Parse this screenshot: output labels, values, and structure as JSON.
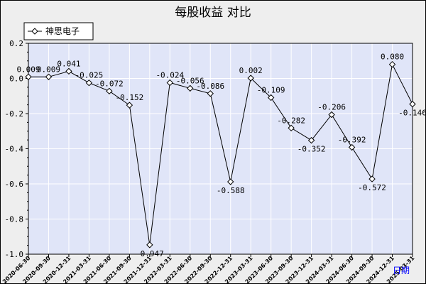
{
  "colors": {
    "background": "#eeeeee",
    "plot_background": "#e0e5f8",
    "grid": "#ffffff",
    "line": "#000000",
    "marker_fill": "#ffffff",
    "xaxis_label_color": "#0000ff"
  },
  "chart_data": {
    "type": "line",
    "title": "每股收益  对比",
    "xlabel": "日期",
    "ylabel": "",
    "ylim": [
      -1.0,
      0.2
    ],
    "yticks": [
      0.2,
      0.0,
      -0.2,
      -0.4,
      -0.6,
      -0.8,
      -1.0
    ],
    "ytick_labels": [
      "0.2",
      "0.0",
      "-0.2",
      "-0.4",
      "-0.6",
      "-0.8",
      "-1.0"
    ],
    "grid": true,
    "legend_position": "top-left",
    "categories": [
      "2020-06-30",
      "2020-09-30",
      "2020-12-31",
      "2021-03-31",
      "2021-06-30",
      "2021-09-30",
      "2021-12-31",
      "2022-03-31",
      "2022-06-30",
      "2022-09-30",
      "2022-12-31",
      "2023-03-31",
      "2023-06-30",
      "2023-09-30",
      "2023-12-31",
      "2024-03-31",
      "2024-06-30",
      "2024-09-30",
      "2024-12-31",
      "2025-03-31"
    ],
    "series": [
      {
        "name": "神思电子",
        "values": [
          0.009,
          0.009,
          0.041,
          -0.025,
          -0.072,
          -0.152,
          -0.947,
          -0.024,
          -0.056,
          -0.086,
          -0.588,
          0.002,
          -0.109,
          -0.282,
          -0.352,
          -0.206,
          -0.392,
          -0.572,
          0.08,
          -0.146
        ],
        "labels": [
          "0.009",
          "0.009",
          "0.041",
          "-0.025",
          "-0.072",
          "-0.152",
          "-0.947",
          "-0.024",
          "-0.056",
          "-0.086",
          "-0.588",
          "0.002",
          "-0.109",
          "-0.282",
          "-0.352",
          "-0.206",
          "-0.392",
          "-0.572",
          "0.080",
          "-0.146"
        ]
      }
    ]
  }
}
